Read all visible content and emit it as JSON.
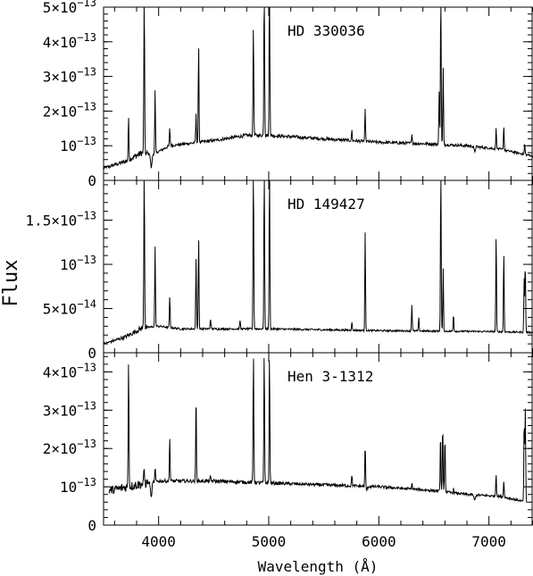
{
  "chart_data": {
    "type": "line",
    "layout": "three vertically stacked panels sharing x axis",
    "xlabel": "Wavelength (Å)",
    "ylabel": "Flux",
    "xlim": [
      3500,
      7400
    ],
    "xticks": [
      {
        "value": 4000,
        "label": "4000"
      },
      {
        "value": 5000,
        "label": "5000"
      },
      {
        "value": 6000,
        "label": "6000"
      },
      {
        "value": 7000,
        "label": "7000"
      }
    ],
    "panels": [
      {
        "annotation": "HD 330036",
        "ylim": [
          0,
          5e-13
        ],
        "yticks": [
          {
            "value": 0,
            "label": "0"
          },
          {
            "value": 1e-13,
            "label": "10⁻¹³",
            "mant": "",
            "exp": "-13"
          },
          {
            "value": 2e-13,
            "label": "2×10⁻¹³",
            "mant": "2",
            "exp": "-13"
          },
          {
            "value": 3e-13,
            "label": "3×10⁻¹³",
            "mant": "3",
            "exp": "-13"
          },
          {
            "value": 4e-13,
            "label": "4×10⁻¹³",
            "mant": "4",
            "exp": "-13"
          },
          {
            "value": 5e-13,
            "label": "5×10⁻¹³",
            "mant": "5",
            "exp": "-13"
          }
        ],
        "continuum": [
          [
            3500,
            3.5e-14
          ],
          [
            3700,
            5.5e-14
          ],
          [
            3850,
            8e-14
          ],
          [
            3950,
            7.5e-14
          ],
          [
            4100,
            1e-13
          ],
          [
            4500,
            1.15e-13
          ],
          [
            4800,
            1.3e-13
          ],
          [
            5000,
            1.3e-13
          ],
          [
            5500,
            1.2e-13
          ],
          [
            6000,
            1.1e-13
          ],
          [
            6500,
            1.05e-13
          ],
          [
            6800,
            1e-13
          ],
          [
            7100,
            9e-14
          ],
          [
            7400,
            7e-14
          ]
        ],
        "lines": [
          [
            3727,
            1.2e-13
          ],
          [
            3869,
            5e-13
          ],
          [
            3968,
            1.8e-13
          ],
          [
            4101,
            5e-14
          ],
          [
            4340,
            8e-14
          ],
          [
            4363,
            2.8e-13
          ],
          [
            4861,
            3.2e-13
          ],
          [
            4959,
            5e-13
          ],
          [
            5007,
            5e-13
          ],
          [
            5755,
            3e-14
          ],
          [
            5876,
            9e-14
          ],
          [
            6300,
            3e-14
          ],
          [
            6548,
            1.5e-13
          ],
          [
            6563,
            5e-13
          ],
          [
            6584,
            2.2e-13
          ],
          [
            7065,
            6e-14
          ],
          [
            7135,
            7e-14
          ],
          [
            7325,
            3e-14
          ]
        ],
        "absorptions": [
          [
            3933,
            4e-14
          ],
          [
            6870,
            1.5e-14
          ]
        ]
      },
      {
        "annotation": "HD 149427",
        "ylim": [
          0,
          1.95e-13
        ],
        "yticks": [
          {
            "value": 0,
            "label": "0"
          },
          {
            "value": 5e-14,
            "label": "5×10⁻¹⁴",
            "mant": "5",
            "exp": "-14"
          },
          {
            "value": 1e-13,
            "label": "10⁻¹³",
            "mant": "",
            "exp": "-13"
          },
          {
            "value": 1.5e-13,
            "label": "1.5×10⁻¹³",
            "mant": "1.5",
            "exp": "-13"
          }
        ],
        "continuum": [
          [
            3500,
            1e-14
          ],
          [
            3700,
            1.8e-14
          ],
          [
            3850,
            2.8e-14
          ],
          [
            4000,
            3e-14
          ],
          [
            4200,
            2.7e-14
          ],
          [
            5000,
            2.7e-14
          ],
          [
            6000,
            2.5e-14
          ],
          [
            7000,
            2.4e-14
          ],
          [
            7400,
            2.3e-14
          ]
        ],
        "lines": [
          [
            3869,
            1.95e-13
          ],
          [
            3968,
            9e-14
          ],
          [
            4101,
            3.5e-14
          ],
          [
            4340,
            8e-14
          ],
          [
            4363,
            1.05e-13
          ],
          [
            4471,
            1.2e-14
          ],
          [
            4740,
            1e-14
          ],
          [
            4861,
            1.95e-13
          ],
          [
            4959,
            1.95e-13
          ],
          [
            5007,
            1.95e-13
          ],
          [
            5755,
            1e-14
          ],
          [
            5876,
            1.1e-13
          ],
          [
            6300,
            3e-14
          ],
          [
            6363,
            1.5e-14
          ],
          [
            6563,
            1.95e-13
          ],
          [
            6584,
            7e-14
          ],
          [
            6678,
            2e-14
          ],
          [
            7065,
            1.1e-13
          ],
          [
            7135,
            9e-14
          ],
          [
            7320,
            6e-14
          ],
          [
            7330,
            8e-14
          ]
        ],
        "absorptions": []
      },
      {
        "annotation": "Hen 3-1312",
        "ylim": [
          0,
          4.5e-13
        ],
        "yticks": [
          {
            "value": 0,
            "label": "0"
          },
          {
            "value": 1e-13,
            "label": "10⁻¹³",
            "mant": "",
            "exp": "-13"
          },
          {
            "value": 2e-13,
            "label": "2×10⁻¹³",
            "mant": "2",
            "exp": "-13"
          },
          {
            "value": 3e-13,
            "label": "3×10⁻¹³",
            "mant": "3",
            "exp": "-13"
          },
          {
            "value": 4e-13,
            "label": "4×10⁻¹³",
            "mant": "4",
            "exp": "-13"
          }
        ],
        "continuum": [
          [
            3550,
            9e-14
          ],
          [
            3800,
            1.05e-13
          ],
          [
            4000,
            1.15e-13
          ],
          [
            4500,
            1.15e-13
          ],
          [
            5000,
            1.1e-13
          ],
          [
            5500,
            1.05e-13
          ],
          [
            6000,
            1e-13
          ],
          [
            6500,
            9e-14
          ],
          [
            6800,
            8e-14
          ],
          [
            7100,
            7.5e-14
          ],
          [
            7350,
            6e-14
          ]
        ],
        "lines": [
          [
            3727,
            3.4e-13
          ],
          [
            3869,
            4e-14
          ],
          [
            3968,
            3.5e-14
          ],
          [
            4101,
            1.2e-13
          ],
          [
            4340,
            2.3e-13
          ],
          [
            4471,
            1e-14
          ],
          [
            4861,
            3.4e-13
          ],
          [
            4959,
            3.4e-13
          ],
          [
            5007,
            3.4e-13
          ],
          [
            5755,
            3e-14
          ],
          [
            5876,
            1.1e-13
          ],
          [
            6300,
            1.5e-14
          ],
          [
            6560,
            1.55e-13
          ],
          [
            6580,
            1.75e-13
          ],
          [
            6600,
            1.5e-13
          ],
          [
            6678,
            1e-14
          ],
          [
            7065,
            6e-14
          ],
          [
            7135,
            4.5e-14
          ],
          [
            7320,
            2.2e-13
          ],
          [
            7330,
            2.4e-13
          ]
        ],
        "absorptions": [
          [
            3933,
            4e-14
          ],
          [
            5890,
            1e-14
          ],
          [
            6870,
            1.5e-14
          ]
        ]
      }
    ]
  }
}
